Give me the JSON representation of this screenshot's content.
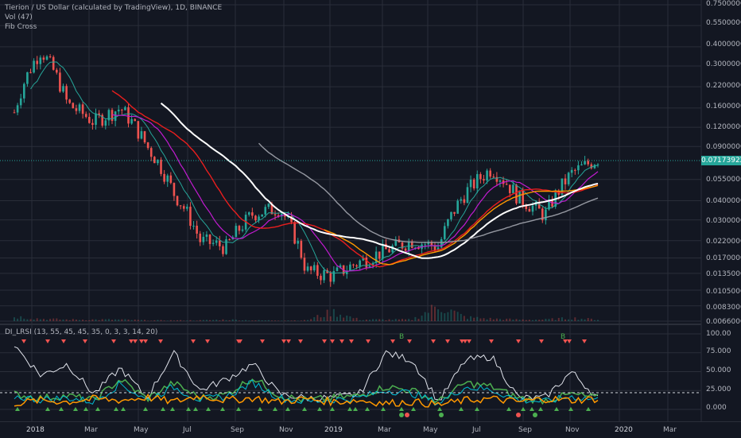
{
  "legend": {
    "symbol_line": "Tierion / US Dollar (calculated by TradingView), 1D, BINANCE",
    "volume_line": "Vol (47)",
    "fib_line": "Fib Cross",
    "indicator_line": "DI_LRSI (13, 55, 45, 45, 35, 0, 3, 3, 14, 20)"
  },
  "price_axis": {
    "ticks": [
      "0.75000000",
      "0.55000000",
      "0.40000000",
      "0.30000000",
      "0.22000000",
      "0.16000000",
      "0.12000000",
      "0.09000000",
      "0.05500000",
      "0.04000000",
      "0.03000000",
      "0.02200000",
      "0.01700000",
      "0.01350000",
      "0.01050000",
      "0.00830000",
      "0.00660000"
    ],
    "current_price": "0.07173922"
  },
  "indicator_axis": {
    "ticks": [
      "100.00",
      "75.000",
      "50.000",
      "25.000",
      "0.000"
    ]
  },
  "time_axis": {
    "ticks": [
      "2018",
      "Mar",
      "May",
      "Jul",
      "Sep",
      "Nov",
      "2019",
      "Mar",
      "May",
      "Jul",
      "Sep",
      "Nov",
      "2020",
      "Mar"
    ]
  },
  "markers": {
    "buy_label": "B"
  },
  "colors": {
    "background": "#131722",
    "grid": "#2a2e39",
    "candle_up": "#26a69a",
    "candle_down": "#ef5350",
    "ma_white": "#ffffff",
    "ma_gray": "#9598a1",
    "ma_red": "#e91e1e",
    "ma_orange": "#ff9800",
    "ma_magenta": "#c21bd1",
    "ma_teal": "#26a69a",
    "lrsi_green": "#4caf50",
    "lrsi_cyan": "#00bcd4",
    "lrsi_white": "#e0e3eb",
    "lrsi_orange": "#ff9800"
  },
  "chart_data": {
    "type": "line",
    "title": "Tierion / US Dollar (calculated by TradingView), 1D, BINANCE",
    "x": [
      "2018-01",
      "2018-02",
      "2018-03",
      "2018-04",
      "2018-05",
      "2018-06",
      "2018-07",
      "2018-08",
      "2018-09",
      "2018-10",
      "2018-11",
      "2018-12",
      "2019-01",
      "2019-02",
      "2019-03",
      "2019-04",
      "2019-05",
      "2019-06",
      "2019-07",
      "2019-08",
      "2019-09",
      "2019-10",
      "2019-11"
    ],
    "series": [
      {
        "name": "",
        "values": [
          0.15,
          0.38,
          0.17,
          0.13,
          0.16,
          0.09,
          0.045,
          0.022,
          0.02,
          0.033,
          0.036,
          0.014,
          0.013,
          0.016,
          0.019,
          0.022,
          0.02,
          0.045,
          0.065,
          0.042,
          0.032,
          0.06,
          0.075
        ]
      }
    ],
    "volume": [
      0.3,
      0.15,
      0.1,
      0.1,
      0.1,
      0.05,
      0.05,
      0.05,
      0.1,
      0.05,
      0.05,
      0.05,
      0.6,
      0.1,
      0.1,
      0.1,
      1.0,
      0.25,
      0.15,
      0.1,
      0.1,
      0.2,
      0.1
    ],
    "indicator": {
      "name": "DI_LRSI",
      "x": [
        "2018-01",
        "2018-02",
        "2018-03",
        "2018-04",
        "2018-05",
        "2018-06",
        "2018-07",
        "2018-08",
        "2018-09",
        "2018-10",
        "2018-11",
        "2018-12",
        "2019-01",
        "2019-02",
        "2019-03",
        "2019-04",
        "2019-05",
        "2019-06",
        "2019-07",
        "2019-08",
        "2019-09",
        "2019-10",
        "2019-11"
      ],
      "white": [
        85,
        45,
        60,
        20,
        55,
        15,
        75,
        25,
        40,
        60,
        20,
        15,
        15,
        20,
        75,
        65,
        10,
        65,
        70,
        15,
        15,
        50,
        15
      ],
      "green": [
        20,
        15,
        18,
        12,
        40,
        14,
        35,
        15,
        20,
        42,
        18,
        12,
        15,
        18,
        30,
        25,
        10,
        35,
        30,
        15,
        12,
        20,
        15
      ],
      "orange": [
        8,
        12,
        10,
        14,
        12,
        16,
        10,
        18,
        12,
        15,
        10,
        14,
        10,
        12,
        8,
        10,
        6,
        12,
        14,
        10,
        14,
        12,
        14
      ],
      "level": 20,
      "ylim": [
        0,
        100
      ]
    },
    "ylim": [
      0.0066,
      0.75
    ],
    "yscale": "log"
  }
}
